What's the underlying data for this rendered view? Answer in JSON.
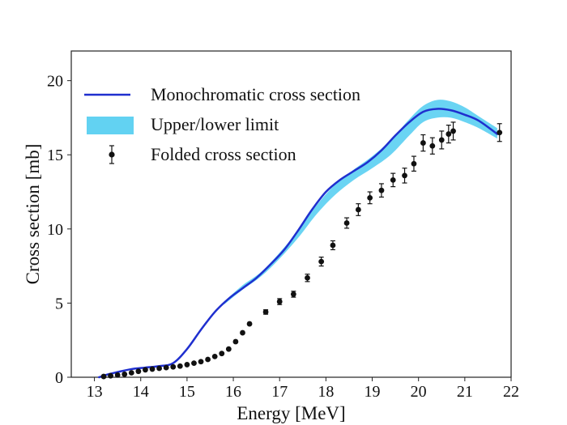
{
  "chart_data": {
    "type": "line",
    "title": "",
    "xlabel": "Energy [MeV]",
    "ylabel": "Cross section [mb]",
    "xlim": [
      12.5,
      22
    ],
    "ylim": [
      0,
      22
    ],
    "x_ticks": [
      13,
      14,
      15,
      16,
      17,
      18,
      19,
      20,
      21,
      22
    ],
    "y_ticks": [
      0,
      5,
      10,
      15,
      20
    ],
    "x_tick_labels": [
      "13",
      "14",
      "15",
      "16",
      "17",
      "18",
      "19",
      "20",
      "21",
      "22"
    ],
    "y_tick_labels": [
      "0",
      "5",
      "10",
      "15",
      "20"
    ],
    "grid": false,
    "legend_position": "top-left",
    "colors": {
      "line": "#1f2fcf",
      "band": "#62d2f2",
      "points": "#111111",
      "axis": "#222222"
    },
    "series": [
      {
        "name": "Monochromatic cross section",
        "type": "line",
        "x": [
          13.1,
          13.3,
          13.5,
          13.8,
          14.1,
          14.4,
          14.7,
          15.0,
          15.3,
          15.6,
          15.9,
          16.2,
          16.5,
          16.8,
          17.1,
          17.4,
          17.7,
          18.0,
          18.3,
          18.6,
          18.9,
          19.2,
          19.5,
          19.8,
          20.1,
          20.4,
          20.7,
          21.0,
          21.3,
          21.7
        ],
        "y": [
          0.0,
          0.2,
          0.35,
          0.55,
          0.65,
          0.75,
          0.95,
          1.9,
          3.2,
          4.4,
          5.3,
          6.0,
          6.7,
          7.6,
          8.6,
          9.9,
          11.3,
          12.5,
          13.3,
          13.9,
          14.5,
          15.3,
          16.3,
          17.2,
          17.9,
          18.1,
          18.0,
          17.7,
          17.3,
          16.4
        ]
      },
      {
        "name": "Upper/lower limit",
        "type": "band",
        "x": [
          15.8,
          16.2,
          16.6,
          17.0,
          17.4,
          17.8,
          18.2,
          18.6,
          19.0,
          19.4,
          19.8,
          20.1,
          20.4,
          20.7,
          21.0,
          21.3,
          21.7
        ],
        "lower": [
          4.9,
          5.9,
          6.8,
          8.0,
          9.4,
          11.0,
          12.3,
          13.3,
          14.1,
          15.0,
          16.3,
          17.2,
          17.5,
          17.5,
          17.2,
          16.8,
          16.1
        ],
        "upper": [
          5.1,
          6.2,
          7.1,
          8.4,
          9.9,
          11.6,
          13.0,
          14.0,
          14.9,
          16.0,
          17.4,
          18.3,
          18.7,
          18.6,
          18.2,
          17.6,
          16.8
        ]
      },
      {
        "name": "Folded cross section",
        "type": "scatter",
        "x": [
          13.2,
          13.35,
          13.5,
          13.65,
          13.8,
          13.95,
          14.1,
          14.25,
          14.4,
          14.55,
          14.7,
          14.85,
          15.0,
          15.15,
          15.3,
          15.45,
          15.6,
          15.75,
          15.9,
          16.05,
          16.2,
          16.35,
          16.7,
          17.0,
          17.3,
          17.6,
          17.9,
          18.15,
          18.45,
          18.7,
          18.95,
          19.2,
          19.45,
          19.7,
          19.9,
          20.1,
          20.3,
          20.5,
          20.65,
          20.75,
          21.75
        ],
        "y": [
          0.05,
          0.1,
          0.15,
          0.2,
          0.3,
          0.4,
          0.5,
          0.55,
          0.6,
          0.65,
          0.7,
          0.75,
          0.85,
          0.95,
          1.05,
          1.2,
          1.4,
          1.6,
          1.9,
          2.4,
          3.0,
          3.6,
          4.4,
          5.1,
          5.6,
          6.7,
          7.8,
          8.9,
          10.4,
          11.3,
          12.1,
          12.6,
          13.3,
          13.6,
          14.4,
          15.8,
          15.6,
          16.0,
          16.4,
          16.6,
          16.5
        ],
        "error": [
          0,
          0,
          0,
          0,
          0,
          0,
          0,
          0,
          0,
          0,
          0,
          0,
          0,
          0,
          0,
          0,
          0,
          0,
          0,
          0,
          0,
          0,
          0.15,
          0.2,
          0.2,
          0.25,
          0.3,
          0.3,
          0.35,
          0.4,
          0.4,
          0.45,
          0.45,
          0.5,
          0.5,
          0.55,
          0.55,
          0.6,
          0.6,
          0.6,
          0.6
        ]
      }
    ],
    "legend": [
      {
        "label": "Monochromatic cross section",
        "kind": "line"
      },
      {
        "label": "Upper/lower limit",
        "kind": "band"
      },
      {
        "label": "Folded cross section",
        "kind": "scatter"
      }
    ]
  }
}
